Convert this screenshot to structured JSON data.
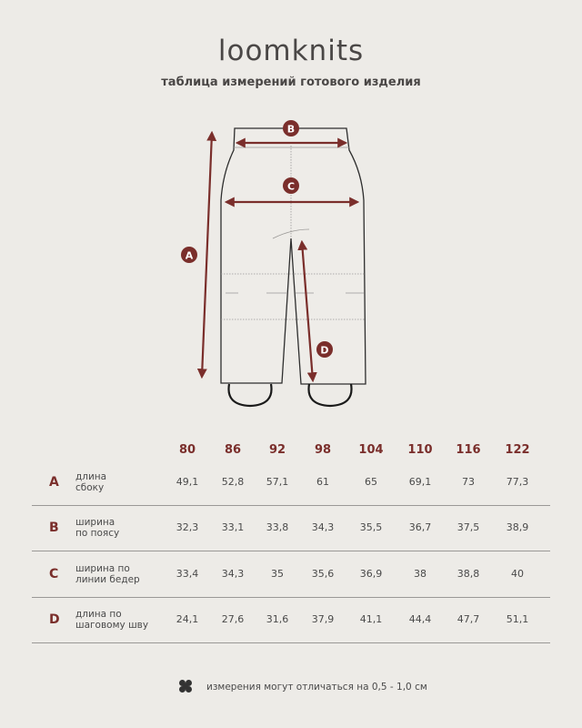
{
  "brand": "loomknits",
  "subtitle": "таблица измерений готового изделия",
  "colors": {
    "accent": "#7a2e2b",
    "background": "#edebe7",
    "text": "#4a4a4a"
  },
  "diagram": {
    "markers": [
      "A",
      "B",
      "C",
      "D"
    ]
  },
  "table": {
    "sizes": [
      "80",
      "86",
      "92",
      "98",
      "104",
      "110",
      "116",
      "122"
    ],
    "rows": [
      {
        "letter": "A",
        "label": "длина\nсбоку",
        "values": [
          "49,1",
          "52,8",
          "57,1",
          "61",
          "65",
          "69,1",
          "73",
          "77,3"
        ]
      },
      {
        "letter": "B",
        "label": "ширина\nпо поясу",
        "values": [
          "32,3",
          "33,1",
          "33,8",
          "34,3",
          "35,5",
          "36,7",
          "37,5",
          "38,9"
        ]
      },
      {
        "letter": "C",
        "label": "ширина по\nлинии бедер",
        "values": [
          "33,4",
          "34,3",
          "35",
          "35,6",
          "36,9",
          "38",
          "38,8",
          "40"
        ]
      },
      {
        "letter": "D",
        "label": "длина по\nшаговому шву",
        "values": [
          "24,1",
          "27,6",
          "31,6",
          "37,9",
          "41,1",
          "44,4",
          "47,7",
          "51,1"
        ]
      }
    ]
  },
  "note": {
    "icon": "clover-icon",
    "text": "измерения могут отличаться на 0,5 - 1,0 см"
  }
}
